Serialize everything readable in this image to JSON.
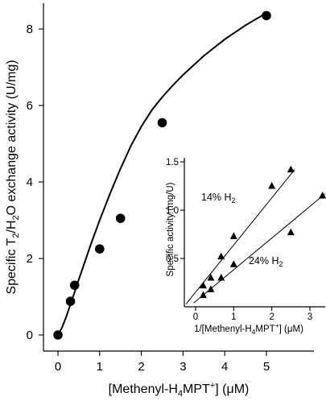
{
  "chart_data": [
    {
      "type": "scatter",
      "xlabel": "[Methenyl-H4MPT+] (μM)",
      "ylabel": "Specific T2/H2O exchange activity (U/mg)",
      "xlim": [
        -0.3,
        5.6
      ],
      "ylim": [
        -0.4,
        8.9
      ],
      "xticks": [
        0,
        1,
        2,
        3,
        4,
        5
      ],
      "yticks": [
        0,
        2,
        4,
        6,
        8
      ],
      "series": [
        {
          "marker": "circle",
          "x": [
            0,
            0.3,
            0.4,
            1.0,
            1.5,
            2.5,
            5.0
          ],
          "y": [
            0,
            0.88,
            1.3,
            2.25,
            3.05,
            5.55,
            8.35
          ]
        }
      ],
      "fit_curve": {
        "x": [
          0,
          0.1,
          0.2,
          0.3,
          0.4,
          0.5,
          0.6,
          0.8,
          1.0,
          1.25,
          1.5,
          1.75,
          2.0,
          2.25,
          2.5,
          2.75,
          3.0,
          3.5,
          4.0,
          4.5,
          5.0
        ],
        "y": [
          0,
          0.2,
          0.48,
          0.8,
          1.12,
          1.45,
          1.77,
          2.4,
          3.0,
          3.7,
          4.35,
          4.95,
          5.45,
          5.88,
          6.22,
          6.52,
          6.8,
          7.3,
          7.73,
          8.1,
          8.42
        ]
      }
    },
    {
      "type": "scatter",
      "xlabel": "1/[Methenyl-H4MPT+] (μM)",
      "ylabel": "Specific activity (mg/U)",
      "xlim": [
        -0.4,
        3.4
      ],
      "ylim": [
        0,
        1.55
      ],
      "xticks": [
        0,
        1,
        2,
        3
      ],
      "yticks": [
        0.5,
        1.0,
        1.5
      ],
      "ytick_labels": [
        "0.5",
        "1.0",
        "1.5"
      ],
      "series": [
        {
          "label": "14% H2",
          "marker": "triangle",
          "x": [
            0.2,
            0.4,
            0.67,
            1.0,
            2.0,
            2.5
          ],
          "y": [
            0.22,
            0.3,
            0.52,
            0.73,
            1.25,
            1.42
          ],
          "fit": {
            "x": [
              -0.25,
              2.6
            ],
            "y": [
              0.03,
              1.42
            ]
          }
        },
        {
          "label": "24% H2",
          "marker": "triangle",
          "x": [
            0.2,
            0.4,
            0.67,
            1.0,
            2.5,
            3.33
          ],
          "y": [
            0.12,
            0.18,
            0.3,
            0.44,
            0.77,
            1.15
          ],
          "fit": {
            "x": [
              -0.05,
              3.4
            ],
            "y": [
              0.04,
              1.17
            ]
          }
        }
      ]
    }
  ]
}
